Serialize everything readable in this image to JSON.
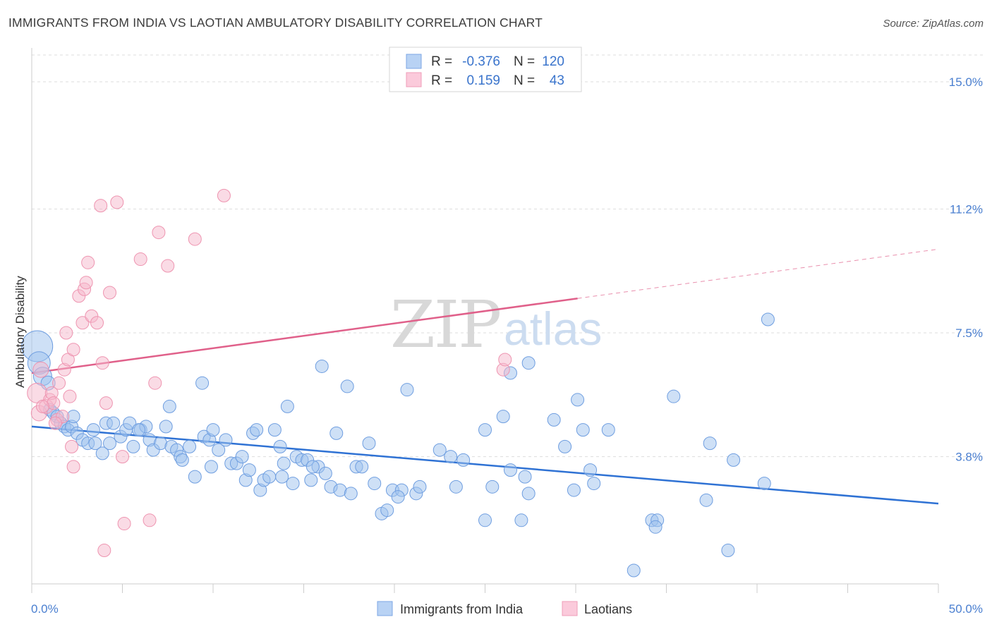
{
  "title": "IMMIGRANTS FROM INDIA VS LAOTIAN AMBULATORY DISABILITY CORRELATION CHART",
  "source": "Source: ZipAtlas.com",
  "watermark": {
    "zip": "ZIP",
    "atlas": "atlas"
  },
  "colors": {
    "blue_fill": "#9ec1ee",
    "blue_stroke": "#6f9ee0",
    "blue_line": "#2f72d4",
    "pink_fill": "#f6b8cc",
    "pink_stroke": "#ee94b0",
    "pink_line": "#e0608a",
    "grid": "#dddddd",
    "tick_text": "#4a7fd0"
  },
  "legend": {
    "rows": [
      {
        "r_label": "R =",
        "r_value": "-0.376",
        "n_label": "N =",
        "n_value": "120"
      },
      {
        "r_label": "R =",
        "r_value": "0.159",
        "n_label": "N =",
        "n_value": "43"
      }
    ]
  },
  "bottom_legend": [
    "Immigrants from India",
    "Laotians"
  ],
  "chart_data": {
    "type": "scatter",
    "title": "IMMIGRANTS FROM INDIA VS LAOTIAN AMBULATORY DISABILITY CORRELATION CHART",
    "xlabel": "",
    "ylabel": "Ambulatory Disability",
    "xlim": [
      0,
      50
    ],
    "ylim": [
      0,
      15.8
    ],
    "x_tick_labels": [
      "0.0%",
      "50.0%"
    ],
    "y_ticks": [
      3.8,
      7.5,
      11.2,
      15.0
    ],
    "y_tick_labels": [
      "3.8%",
      "7.5%",
      "11.2%",
      "15.0%"
    ],
    "grid": "horizontal dashed",
    "legend_position": "top-center",
    "series": [
      {
        "name": "Immigrants from India",
        "r": -0.376,
        "n": 120,
        "trend": {
          "x": [
            0,
            50
          ],
          "y": [
            4.7,
            2.4
          ],
          "dashed_from_x": null
        },
        "points": [
          [
            0.3,
            7.1,
            22
          ],
          [
            0.4,
            6.6,
            16
          ],
          [
            0.6,
            6.2,
            13
          ],
          [
            0.9,
            6.0,
            10
          ],
          [
            1.0,
            5.2,
            9
          ],
          [
            1.2,
            5.1,
            9
          ],
          [
            1.4,
            5.0,
            9
          ],
          [
            1.6,
            4.8,
            9
          ],
          [
            1.8,
            4.7,
            9
          ],
          [
            2.0,
            4.6,
            9
          ],
          [
            2.2,
            4.7,
            9
          ],
          [
            2.5,
            4.5,
            9
          ],
          [
            2.8,
            4.3,
            9
          ],
          [
            3.1,
            4.2,
            9
          ],
          [
            3.5,
            4.2,
            9
          ],
          [
            3.9,
            3.9,
            9
          ],
          [
            4.1,
            4.8,
            9
          ],
          [
            4.3,
            4.2,
            9
          ],
          [
            4.5,
            4.8,
            9
          ],
          [
            4.9,
            4.4,
            9
          ],
          [
            5.2,
            4.6,
            9
          ],
          [
            5.4,
            4.8,
            9
          ],
          [
            5.6,
            4.1,
            9
          ],
          [
            6.0,
            4.6,
            9
          ],
          [
            6.3,
            4.7,
            9
          ],
          [
            6.5,
            4.3,
            9
          ],
          [
            6.7,
            4.0,
            9
          ],
          [
            7.1,
            4.2,
            9
          ],
          [
            7.4,
            4.7,
            9
          ],
          [
            7.7,
            4.1,
            9
          ],
          [
            7.6,
            5.3,
            9
          ],
          [
            8.0,
            4.0,
            9
          ],
          [
            8.2,
            3.8,
            9
          ],
          [
            8.3,
            3.7,
            9
          ],
          [
            8.7,
            4.1,
            9
          ],
          [
            9.0,
            3.2,
            9
          ],
          [
            9.4,
            6.0,
            9
          ],
          [
            9.5,
            4.4,
            9
          ],
          [
            9.8,
            4.3,
            9
          ],
          [
            10.0,
            4.6,
            9
          ],
          [
            10.3,
            4.0,
            9
          ],
          [
            10.7,
            4.3,
            9
          ],
          [
            11.0,
            3.6,
            9
          ],
          [
            11.3,
            3.6,
            9
          ],
          [
            11.6,
            3.8,
            9
          ],
          [
            11.8,
            3.1,
            9
          ],
          [
            12.0,
            3.4,
            9
          ],
          [
            12.2,
            4.5,
            9
          ],
          [
            12.4,
            4.6,
            9
          ],
          [
            12.6,
            2.8,
            9
          ],
          [
            12.8,
            3.1,
            9
          ],
          [
            13.1,
            3.2,
            9
          ],
          [
            13.4,
            4.6,
            9
          ],
          [
            13.7,
            4.1,
            9
          ],
          [
            13.9,
            3.6,
            9
          ],
          [
            14.1,
            5.3,
            9
          ],
          [
            14.4,
            3.0,
            9
          ],
          [
            14.6,
            3.8,
            9
          ],
          [
            14.9,
            3.7,
            9
          ],
          [
            15.2,
            3.7,
            9
          ],
          [
            15.4,
            3.1,
            9
          ],
          [
            15.8,
            3.5,
            9
          ],
          [
            16.0,
            6.5,
            9
          ],
          [
            16.2,
            3.3,
            9
          ],
          [
            16.5,
            2.9,
            9
          ],
          [
            16.8,
            4.5,
            9
          ],
          [
            17.0,
            2.8,
            9
          ],
          [
            17.4,
            5.9,
            9
          ],
          [
            17.6,
            2.7,
            9
          ],
          [
            17.9,
            3.5,
            9
          ],
          [
            18.2,
            3.5,
            9
          ],
          [
            18.6,
            4.2,
            9
          ],
          [
            18.9,
            3.0,
            9
          ],
          [
            19.3,
            2.1,
            9
          ],
          [
            19.6,
            2.2,
            9
          ],
          [
            19.9,
            2.8,
            9
          ],
          [
            20.4,
            2.8,
            9
          ],
          [
            20.7,
            5.8,
            9
          ],
          [
            21.2,
            2.7,
            9
          ],
          [
            21.4,
            2.9,
            9
          ],
          [
            22.5,
            4.0,
            9
          ],
          [
            23.1,
            3.8,
            9
          ],
          [
            23.4,
            2.9,
            9
          ],
          [
            23.8,
            3.7,
            9
          ],
          [
            25.0,
            4.6,
            9
          ],
          [
            25.0,
            1.9,
            9
          ],
          [
            25.4,
            2.9,
            9
          ],
          [
            26.0,
            5.0,
            9
          ],
          [
            26.4,
            3.4,
            9
          ],
          [
            26.4,
            6.3,
            9
          ],
          [
            27.0,
            1.9,
            9
          ],
          [
            27.2,
            3.2,
            9
          ],
          [
            27.4,
            6.6,
            9
          ],
          [
            27.4,
            2.7,
            9
          ],
          [
            28.8,
            4.9,
            9
          ],
          [
            29.4,
            4.1,
            9
          ],
          [
            29.9,
            2.8,
            9
          ],
          [
            30.1,
            5.5,
            9
          ],
          [
            30.4,
            4.6,
            9
          ],
          [
            30.8,
            3.4,
            9
          ],
          [
            31.0,
            3.0,
            9
          ],
          [
            31.8,
            4.6,
            9
          ],
          [
            33.2,
            0.4,
            9
          ],
          [
            34.2,
            1.9,
            9
          ],
          [
            34.5,
            1.9,
            9
          ],
          [
            35.4,
            5.6,
            9
          ],
          [
            37.2,
            2.5,
            9
          ],
          [
            37.4,
            4.2,
            9
          ],
          [
            38.4,
            1.0,
            9
          ],
          [
            38.7,
            3.7,
            9
          ],
          [
            40.4,
            3.0,
            9
          ],
          [
            40.6,
            7.9,
            9
          ],
          [
            34.4,
            1.7,
            9
          ],
          [
            13.8,
            3.2,
            9
          ],
          [
            9.9,
            3.5,
            9
          ],
          [
            5.9,
            4.6,
            9
          ],
          [
            3.4,
            4.6,
            9
          ],
          [
            2.3,
            5.0,
            9
          ],
          [
            15.5,
            3.5,
            9
          ],
          [
            20.2,
            2.6,
            9
          ]
        ]
      },
      {
        "name": "Laotians",
        "r": 0.159,
        "n": 43,
        "trend": {
          "x": [
            0,
            50
          ],
          "y": [
            6.3,
            10.0
          ],
          "dashed_from_x": 30.1
        },
        "points": [
          [
            0.3,
            5.7,
            14
          ],
          [
            0.4,
            5.1,
            11
          ],
          [
            0.5,
            6.4,
            11
          ],
          [
            0.8,
            5.3,
            10
          ],
          [
            1.0,
            5.5,
            9
          ],
          [
            1.1,
            5.7,
            9
          ],
          [
            1.2,
            5.4,
            9
          ],
          [
            1.4,
            4.9,
            9
          ],
          [
            1.5,
            6.0,
            9
          ],
          [
            1.7,
            5.0,
            9
          ],
          [
            1.8,
            6.4,
            9
          ],
          [
            1.9,
            7.5,
            9
          ],
          [
            2.0,
            6.7,
            9
          ],
          [
            2.1,
            5.6,
            9
          ],
          [
            2.2,
            4.1,
            9
          ],
          [
            2.3,
            3.5,
            9
          ],
          [
            2.3,
            7.0,
            9
          ],
          [
            2.6,
            8.6,
            9
          ],
          [
            2.8,
            7.8,
            9
          ],
          [
            2.9,
            8.8,
            9
          ],
          [
            3.0,
            9.0,
            9
          ],
          [
            3.1,
            9.6,
            9
          ],
          [
            3.3,
            8.0,
            9
          ],
          [
            3.6,
            7.8,
            9
          ],
          [
            3.8,
            11.3,
            9
          ],
          [
            3.9,
            6.6,
            9
          ],
          [
            4.0,
            1.0,
            9
          ],
          [
            4.1,
            5.4,
            9
          ],
          [
            4.3,
            8.7,
            9
          ],
          [
            4.7,
            11.4,
            9
          ],
          [
            5.0,
            3.8,
            9
          ],
          [
            5.1,
            1.8,
            9
          ],
          [
            6.0,
            9.7,
            9
          ],
          [
            6.5,
            1.9,
            9
          ],
          [
            6.8,
            6.0,
            9
          ],
          [
            7.0,
            10.5,
            9
          ],
          [
            7.5,
            9.5,
            9
          ],
          [
            9.0,
            10.3,
            9
          ],
          [
            10.6,
            11.6,
            9
          ],
          [
            26.0,
            6.4,
            9
          ],
          [
            26.1,
            6.7,
            9
          ],
          [
            1.3,
            4.8,
            9
          ],
          [
            0.6,
            5.3,
            9
          ]
        ]
      }
    ]
  }
}
